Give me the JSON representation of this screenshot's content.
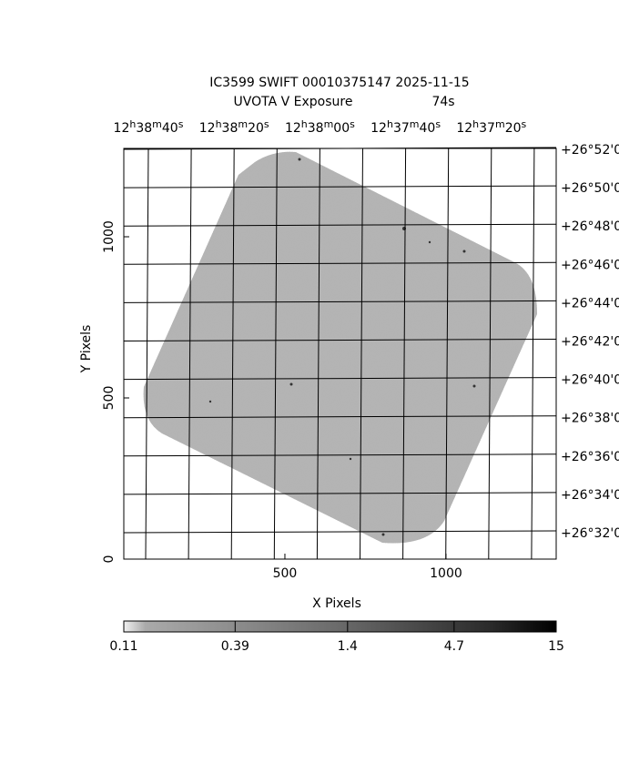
{
  "chart_data": {
    "type": "image",
    "title": "IC3599 SWIFT 00010375147 2025-11-15",
    "subtitle": "UVOTA V Exposure",
    "exposure": "74s",
    "xlabel": "X Pixels",
    "ylabel": "Y Pixels",
    "xlim": [
      0,
      1342
    ],
    "ylim": [
      0,
      1274
    ],
    "xticks": [
      500,
      1000
    ],
    "yticks": [
      0,
      500,
      1000
    ],
    "ra_ticks": [
      [
        "12",
        "h",
        "38",
        "m",
        "40",
        "s"
      ],
      [
        "12",
        "h",
        "38",
        "m",
        "20",
        "s"
      ],
      [
        "12",
        "h",
        "38",
        "m",
        "00",
        "s"
      ],
      [
        "12",
        "h",
        "37",
        "m",
        "40",
        "s"
      ],
      [
        "12",
        "h",
        "37",
        "m",
        "20",
        "s"
      ]
    ],
    "dec_ticks": [
      "+26°52'0",
      "+26°50'0",
      "+26°48'0",
      "+26°46'0",
      "+26°44'0",
      "+26°42'0",
      "+26°40'0",
      "+26°38'0",
      "+26°36'0",
      "+26°34'0",
      "+26°32'0"
    ],
    "colorbar": {
      "scale": "log",
      "lim": [
        0.11,
        15
      ],
      "ticks": [
        0.11,
        0.39,
        1.4,
        4.7,
        15
      ]
    }
  }
}
